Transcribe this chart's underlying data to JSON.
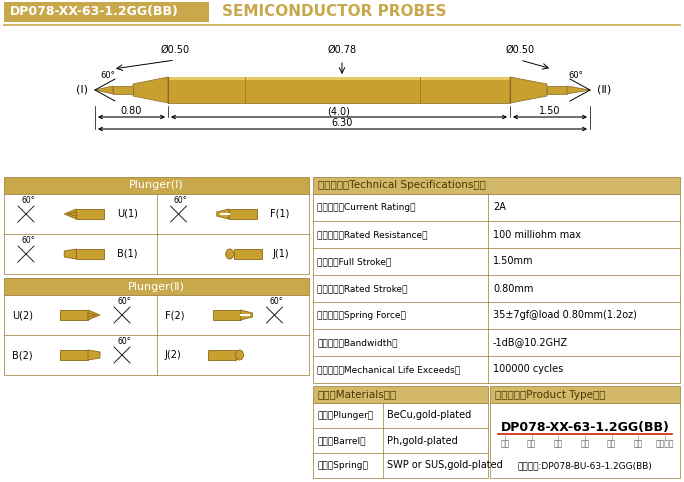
{
  "fig_w": 6.84,
  "fig_h": 4.82,
  "dpi": 100,
  "title_box_text": "DP078-XX-63-1.2GG(BB)",
  "title_right_text": "SEMICONDUCTOR PROBES",
  "gold_color": "#C9A84C",
  "gold_light": "#DFC078",
  "gold_dark": "#9A7830",
  "white": "#FFFFFF",
  "black": "#000000",
  "spec_header_color": "#D4B86A",
  "text_dark": "#333300",
  "probe_dims": {
    "phi_left": "Ø0.50",
    "phi_center": "Ø0.78",
    "phi_right": "Ø0.50",
    "dim_left": "0.80",
    "dim_center": "(4.0)",
    "dim_right": "1.50",
    "dim_total": "6.30",
    "label_I": "(Ⅰ)",
    "label_II": "(Ⅱ)"
  },
  "plunger_I_title": "Plunger(Ⅰ)",
  "plunger_II_title": "Plunger(Ⅱ)",
  "tech_specs_title": "技术要求（Technical Specifications）：",
  "tech_specs": [
    [
      "额定电流（Current Rating）",
      "2A"
    ],
    [
      "额定电阻（Rated Resistance）",
      "100 milliohm max"
    ],
    [
      "满行程（Full Stroke）",
      "1.50mm"
    ],
    [
      "额定行程（Rated Stroke）",
      "0.80mm"
    ],
    [
      "额定弹力（Spring Force）",
      "35±7gf@load 0.80mm(1.2oz)"
    ],
    [
      "频率带宽（Bandwidth）",
      "-1dB@10.2GHZ"
    ],
    [
      "测试寿命（Mechanical Life Exceeds）",
      "100000 cycles"
    ]
  ],
  "materials_title": "材质（Materials）：",
  "materials": [
    [
      "针头（Plunger）",
      "BeCu,gold-plated"
    ],
    [
      "针管（Barrel）",
      "Ph,gold-plated"
    ],
    [
      "弹簧（Spring）",
      "SWP or SUS,gold-plated"
    ]
  ],
  "product_type_title": "成品型号（Product Type）：",
  "product_type_main": "DP078-XX-63-1.2GG(BB)",
  "product_type_labels": [
    "系列",
    "规格",
    "头型",
    "总长",
    "弹力",
    "镜金",
    "针头材质"
  ],
  "product_type_order": "订购举例:DP078-BU-63-1.2GG(BB)",
  "red_color": "#CC2200"
}
